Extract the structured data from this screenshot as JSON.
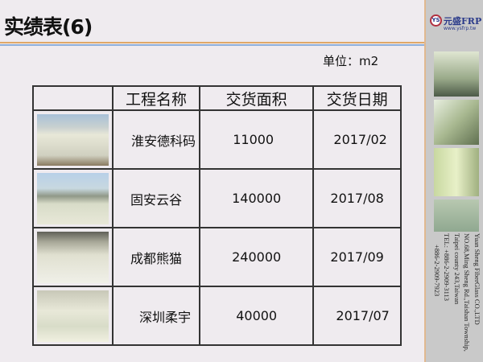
{
  "title": "实绩表(6)",
  "unit": "单位：m2",
  "logo": {
    "name": "元盛FRP",
    "url": "www.ysfrp.tw",
    "mark": "YS"
  },
  "address": [
    "Yuan Sheng FiberGlass CO.,LTD",
    "NO.68,Ming Sheng Rd.,Taishan Township,",
    "Taipei county 243,Taiwan",
    "TEL: +886-2-2909-3113",
    "+886-2-2909-7923"
  ],
  "table": {
    "headers": [
      "",
      "工程名称",
      "交货面积",
      "交货日期"
    ],
    "rows": [
      {
        "name": "淮安德科码",
        "area": "11000",
        "date": "2017/02"
      },
      {
        "name": "固安云谷",
        "area": "140000",
        "date": "2017/08"
      },
      {
        "name": "成都熊猫",
        "area": "240000",
        "date": "2017/09"
      },
      {
        "name": "深圳柔宇",
        "area": "40000",
        "date": "2017/07"
      }
    ]
  },
  "colors": {
    "accent_orange": "#e0a868",
    "accent_blue": "#8fb0dc",
    "sidebar": "#c9c9c9"
  }
}
